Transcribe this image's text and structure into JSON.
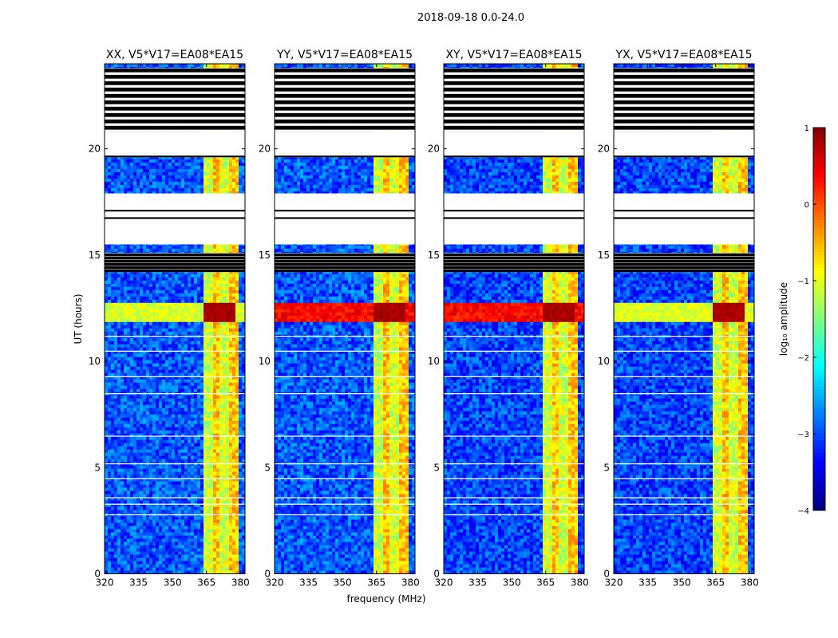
{
  "figure": {
    "suptitle": "2018-09-18 0.0-24.0",
    "xlabel": "frequency (MHz)",
    "ylabel": "UT (hours)"
  },
  "chart_data": {
    "type": "heatmap",
    "title": "2018-09-18 0.0-24.0",
    "xlabel": "frequency (MHz)",
    "ylabel": "UT (hours)",
    "xlim": [
      320,
      382
    ],
    "ylim": [
      0,
      24
    ],
    "xticks": [
      "320",
      "335",
      "350",
      "365",
      "380"
    ],
    "xtick_values": [
      320,
      335,
      350,
      365,
      380
    ],
    "yticks": [
      "0",
      "5",
      "10",
      "15",
      "20"
    ],
    "ytick_values": [
      0,
      5,
      10,
      15,
      20
    ],
    "panels": [
      {
        "title": "XX, V5*V17=EA08*EA15"
      },
      {
        "title": "YY, V5*V17=EA08*EA15"
      },
      {
        "title": "XY, V5*V17=EA08*EA15"
      },
      {
        "title": "YX, V5*V17=EA08*EA15"
      }
    ],
    "colorbar": {
      "label": "log₁₀ amplitude",
      "range": [
        -4,
        1
      ],
      "ticks": [
        "1",
        "0",
        "−1",
        "−2",
        "−3",
        "−4"
      ],
      "tick_values": [
        1,
        0,
        -1,
        -2,
        -3,
        -4
      ],
      "colormap": "jet"
    },
    "rfi_band_mhz": [
      363.5,
      378.5
    ],
    "strong_event_ut": [
      11.9,
      12.7
    ],
    "missing_data_ut": [
      [
        14.2,
        15.1
      ],
      [
        15.5,
        17.9
      ],
      [
        19.6,
        20.8
      ],
      [
        20.8,
        23.8
      ]
    ]
  }
}
